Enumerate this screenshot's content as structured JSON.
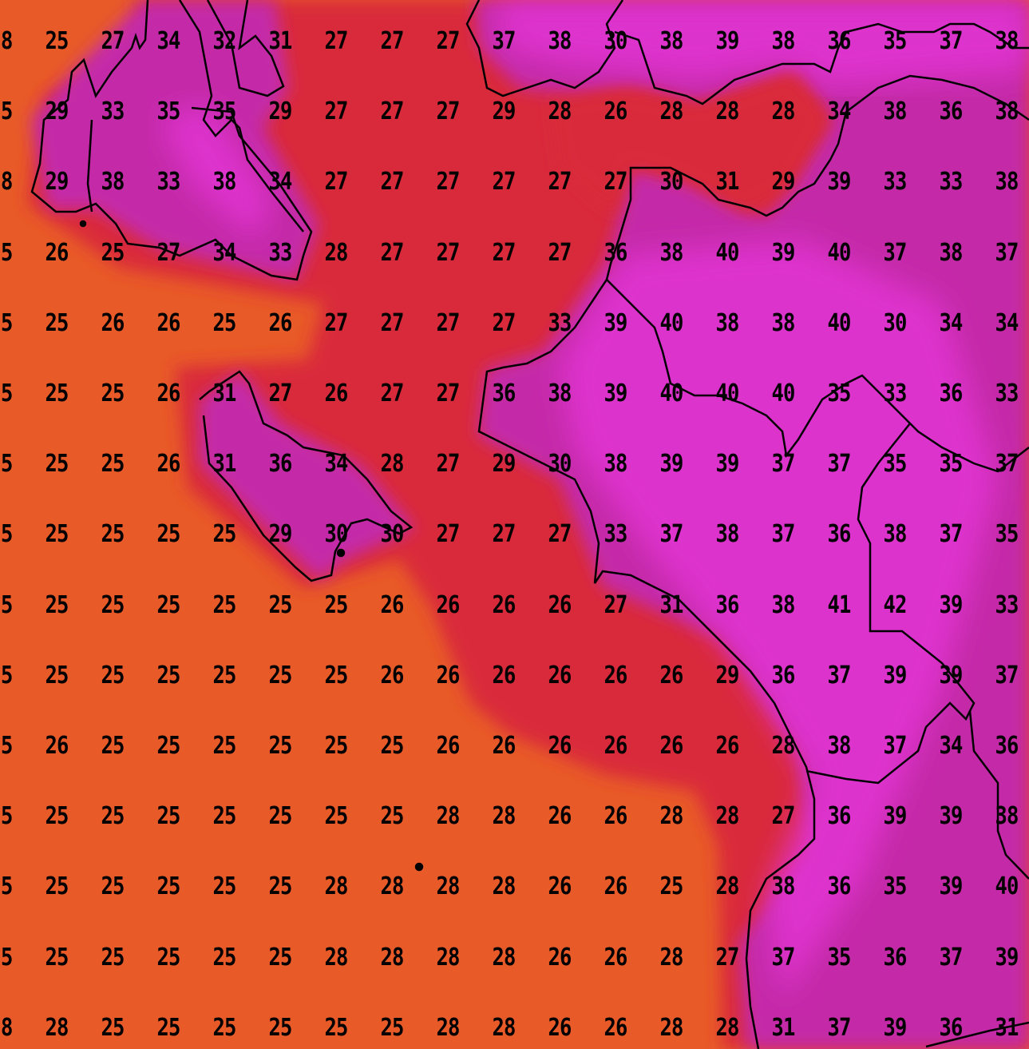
{
  "map": {
    "colors": {
      "sea_cool": "#e85a28",
      "sea_warm": "#d92b3a",
      "land_mid": "#c42aa8",
      "land_hot": "#e234d4",
      "coastline": "#000000"
    },
    "grid": [
      [
        "28",
        "25",
        "27",
        "34",
        "32",
        "31",
        "27",
        "27",
        "27",
        "37",
        "38",
        "30",
        "38",
        "39",
        "38",
        "36",
        "35",
        "37",
        "38"
      ],
      [
        "25",
        "29",
        "33",
        "35",
        "35",
        "29",
        "27",
        "27",
        "27",
        "29",
        "28",
        "26",
        "28",
        "28",
        "28",
        "34",
        "38",
        "36",
        "38"
      ],
      [
        "28",
        "29",
        "38",
        "33",
        "38",
        "34",
        "27",
        "27",
        "27",
        "27",
        "27",
        "27",
        "30",
        "31",
        "29",
        "39",
        "33",
        "33",
        "38"
      ],
      [
        "25",
        "26",
        "25",
        "27",
        "34",
        "33",
        "28",
        "27",
        "27",
        "27",
        "27",
        "36",
        "38",
        "40",
        "39",
        "40",
        "37",
        "38",
        "37"
      ],
      [
        "25",
        "25",
        "26",
        "26",
        "25",
        "26",
        "27",
        "27",
        "27",
        "27",
        "33",
        "39",
        "40",
        "38",
        "38",
        "40",
        "30",
        "34",
        "34"
      ],
      [
        "25",
        "25",
        "25",
        "26",
        "31",
        "27",
        "26",
        "27",
        "27",
        "36",
        "38",
        "39",
        "40",
        "40",
        "40",
        "35",
        "33",
        "36",
        "33"
      ],
      [
        "25",
        "25",
        "25",
        "26",
        "31",
        "36",
        "34",
        "28",
        "27",
        "29",
        "30",
        "38",
        "39",
        "39",
        "37",
        "37",
        "35",
        "35",
        "37"
      ],
      [
        "25",
        "25",
        "25",
        "25",
        "25",
        "29",
        "30",
        "30",
        "27",
        "27",
        "27",
        "33",
        "37",
        "38",
        "37",
        "36",
        "38",
        "37",
        "35"
      ],
      [
        "25",
        "25",
        "25",
        "25",
        "25",
        "25",
        "25",
        "26",
        "26",
        "26",
        "26",
        "27",
        "31",
        "36",
        "38",
        "41",
        "42",
        "39",
        "33"
      ],
      [
        "25",
        "25",
        "25",
        "25",
        "25",
        "25",
        "25",
        "26",
        "26",
        "26",
        "26",
        "26",
        "26",
        "29",
        "36",
        "37",
        "39",
        "39",
        "37"
      ],
      [
        "25",
        "26",
        "25",
        "25",
        "25",
        "25",
        "25",
        "25",
        "26",
        "26",
        "26",
        "26",
        "26",
        "26",
        "28",
        "38",
        "37",
        "34",
        "36"
      ],
      [
        "25",
        "25",
        "25",
        "25",
        "25",
        "25",
        "25",
        "25",
        "28",
        "28",
        "26",
        "26",
        "28",
        "28",
        "27",
        "36",
        "39",
        "39",
        "38"
      ],
      [
        "25",
        "25",
        "25",
        "25",
        "25",
        "25",
        "28",
        "28",
        "28",
        "28",
        "26",
        "26",
        "25",
        "28",
        "38",
        "36",
        "35",
        "39",
        "40"
      ],
      [
        "25",
        "25",
        "25",
        "25",
        "25",
        "25",
        "28",
        "28",
        "28",
        "28",
        "26",
        "26",
        "28",
        "27",
        "37",
        "35",
        "36",
        "37",
        "39"
      ],
      [
        "28",
        "28",
        "25",
        "25",
        "25",
        "25",
        "25",
        "25",
        "28",
        "28",
        "26",
        "26",
        "28",
        "28",
        "31",
        "37",
        "39",
        "36",
        "31"
      ]
    ]
  }
}
